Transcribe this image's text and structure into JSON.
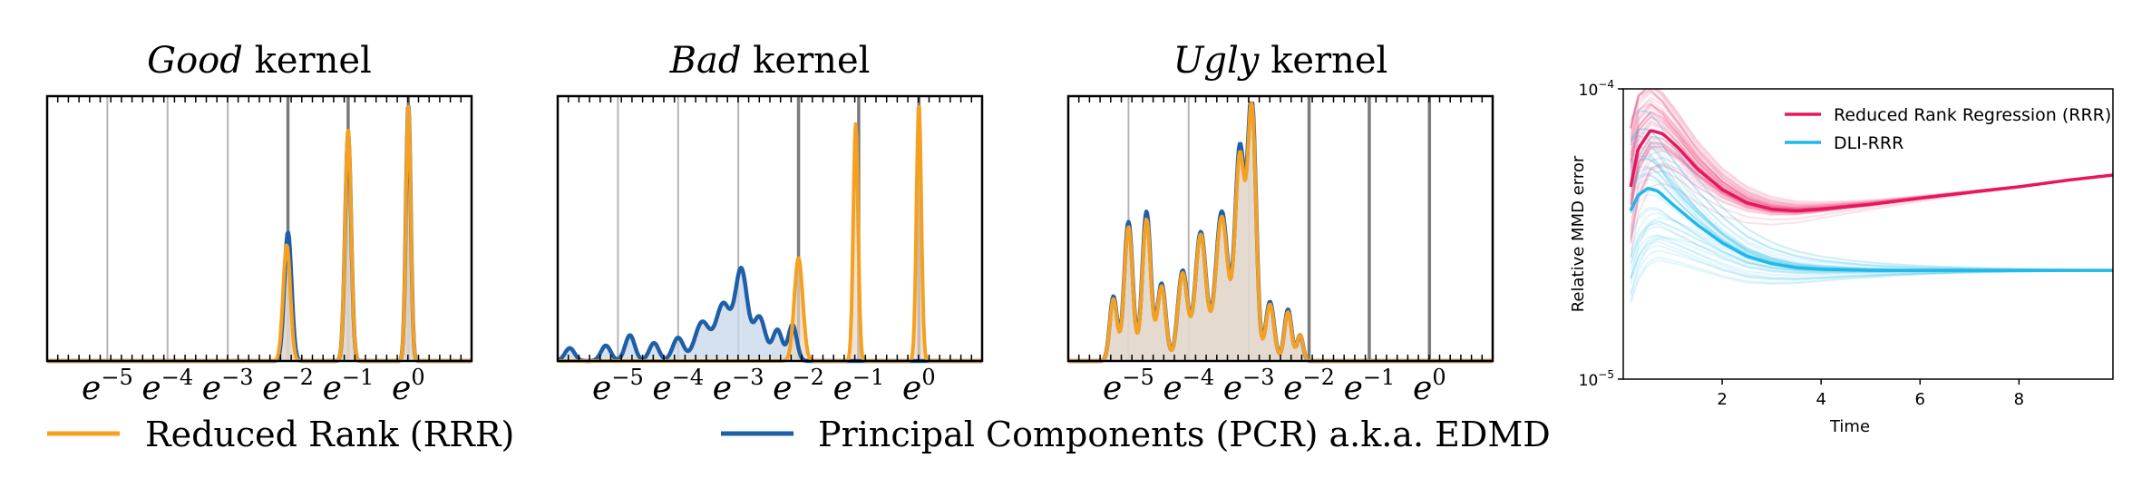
{
  "chart_data": [
    {
      "type": "area",
      "title": {
        "italic": "Good",
        "rest": " kernel"
      },
      "x_scale": "log-e",
      "x_tick_labels": [
        {
          "base": "e",
          "exp": "−5",
          "value": -5
        },
        {
          "base": "e",
          "exp": "−4",
          "value": -4
        },
        {
          "base": "e",
          "exp": "−3",
          "value": -3
        },
        {
          "base": "e",
          "exp": "−2",
          "value": -2
        },
        {
          "base": "e",
          "exp": "−1",
          "value": -1
        },
        {
          "base": "e",
          "exp": "0",
          "value": 0
        }
      ],
      "xlim": [
        -6,
        1.05
      ],
      "ylim": [
        0,
        1
      ],
      "vlines": [
        {
          "x": -5,
          "style": "light"
        },
        {
          "x": -4,
          "style": "light"
        },
        {
          "x": -3,
          "style": "light"
        },
        {
          "x": -2,
          "style": "dark"
        },
        {
          "x": -1,
          "style": "dark"
        },
        {
          "x": 0,
          "style": "dark"
        }
      ],
      "series": [
        {
          "name": "Principal Components (PCR) a.k.a. EDMD",
          "color": "#1f5fa8",
          "fill": "#c7d7e8",
          "peaks": [
            [
              -2.0,
              0.5,
              0.06
            ],
            [
              -1.0,
              0.88,
              0.05
            ],
            [
              0.0,
              1.0,
              0.04
            ]
          ]
        },
        {
          "name": "Reduced Rank (RRR)",
          "color": "#f5a020",
          "fill": "#e9d7c2",
          "peaks": [
            [
              -2.02,
              0.45,
              0.06
            ],
            [
              -1.0,
              0.9,
              0.05
            ],
            [
              0.0,
              1.0,
              0.04
            ]
          ]
        }
      ]
    },
    {
      "type": "area",
      "title": {
        "italic": "Bad",
        "rest": " kernel"
      },
      "x_scale": "log-e",
      "x_tick_labels": [
        {
          "base": "e",
          "exp": "−5",
          "value": -5
        },
        {
          "base": "e",
          "exp": "−4",
          "value": -4
        },
        {
          "base": "e",
          "exp": "−3",
          "value": -3
        },
        {
          "base": "e",
          "exp": "−2",
          "value": -2
        },
        {
          "base": "e",
          "exp": "−1",
          "value": -1
        },
        {
          "base": "e",
          "exp": "0",
          "value": 0
        }
      ],
      "xlim": [
        -6,
        1.05
      ],
      "ylim": [
        0,
        1
      ],
      "vlines": [
        {
          "x": -5,
          "style": "light"
        },
        {
          "x": -4,
          "style": "light"
        },
        {
          "x": -3,
          "style": "light"
        },
        {
          "x": -2,
          "style": "dark"
        },
        {
          "x": -1,
          "style": "dark"
        },
        {
          "x": 0,
          "style": "dark"
        }
      ],
      "series": [
        {
          "name": "Principal Components (PCR) a.k.a. EDMD",
          "color": "#1f5fa8",
          "fill": "#c7d7e8",
          "peaks": [
            [
              -5.8,
              0.05,
              0.08
            ],
            [
              -5.2,
              0.06,
              0.08
            ],
            [
              -4.8,
              0.1,
              0.08
            ],
            [
              -4.4,
              0.07,
              0.08
            ],
            [
              -4.0,
              0.09,
              0.09
            ],
            [
              -3.6,
              0.15,
              0.12
            ],
            [
              -3.25,
              0.22,
              0.12
            ],
            [
              -2.95,
              0.35,
              0.1
            ],
            [
              -2.65,
              0.17,
              0.1
            ],
            [
              -2.35,
              0.12,
              0.08
            ],
            [
              -2.1,
              0.14,
              0.07
            ]
          ]
        },
        {
          "name": "Reduced Rank (RRR)",
          "color": "#f5a020",
          "fill": "#e9d7c2",
          "peaks": [
            [
              -2.0,
              0.4,
              0.07
            ],
            [
              -1.05,
              0.92,
              0.04
            ],
            [
              0.0,
              1.0,
              0.04
            ]
          ]
        }
      ]
    },
    {
      "type": "area",
      "title": {
        "italic": "Ugly",
        "rest": " kernel"
      },
      "x_scale": "log-e",
      "x_tick_labels": [
        {
          "base": "e",
          "exp": "−5",
          "value": -5
        },
        {
          "base": "e",
          "exp": "−4",
          "value": -4
        },
        {
          "base": "e",
          "exp": "−3",
          "value": -3
        },
        {
          "base": "e",
          "exp": "−2",
          "value": -2
        },
        {
          "base": "e",
          "exp": "−1",
          "value": -1
        },
        {
          "base": "e",
          "exp": "0",
          "value": 0
        }
      ],
      "xlim": [
        -6,
        1.05
      ],
      "ylim": [
        0,
        1
      ],
      "vlines": [
        {
          "x": -5,
          "style": "light"
        },
        {
          "x": -4,
          "style": "light"
        },
        {
          "x": -3,
          "style": "light"
        },
        {
          "x": -2,
          "style": "dark"
        },
        {
          "x": -1,
          "style": "dark"
        },
        {
          "x": 0,
          "style": "dark"
        }
      ],
      "series": [
        {
          "name": "Principal Components (PCR) a.k.a. EDMD",
          "color": "#1f5fa8",
          "fill": "#c7d7e8",
          "peaks": [
            [
              -5.25,
              0.25,
              0.06
            ],
            [
              -5.0,
              0.54,
              0.07
            ],
            [
              -4.7,
              0.58,
              0.07
            ],
            [
              -4.45,
              0.3,
              0.07
            ],
            [
              -4.1,
              0.35,
              0.08
            ],
            [
              -3.8,
              0.5,
              0.09
            ],
            [
              -3.45,
              0.58,
              0.1
            ],
            [
              -3.15,
              0.82,
              0.08
            ],
            [
              -2.95,
              1.0,
              0.07
            ],
            [
              -2.65,
              0.23,
              0.07
            ],
            [
              -2.35,
              0.2,
              0.06
            ],
            [
              -2.15,
              0.1,
              0.05
            ]
          ]
        },
        {
          "name": "Reduced Rank (RRR)",
          "color": "#f5a020",
          "fill": "#e9d7c2",
          "peaks": [
            [
              -5.25,
              0.24,
              0.06
            ],
            [
              -5.0,
              0.52,
              0.07
            ],
            [
              -4.7,
              0.55,
              0.07
            ],
            [
              -4.45,
              0.29,
              0.07
            ],
            [
              -4.1,
              0.34,
              0.08
            ],
            [
              -3.8,
              0.49,
              0.09
            ],
            [
              -3.45,
              0.56,
              0.1
            ],
            [
              -3.15,
              0.79,
              0.08
            ],
            [
              -2.95,
              0.97,
              0.07
            ],
            [
              -2.65,
              0.22,
              0.07
            ],
            [
              -2.35,
              0.19,
              0.06
            ],
            [
              -2.15,
              0.1,
              0.05
            ]
          ]
        }
      ]
    },
    {
      "type": "line",
      "xlabel": "Time",
      "ylabel": "Relative MMD error",
      "y_scale": "log",
      "xlim": [
        0,
        9.9
      ],
      "ylim": [
        1e-05,
        0.0001
      ],
      "x_ticks": [
        2,
        4,
        6,
        8
      ],
      "y_ticks": [
        {
          "value": 1e-05,
          "base": "10",
          "exp": "−5"
        },
        {
          "value": 0.0001,
          "base": "10",
          "exp": "−4"
        }
      ],
      "legend_position": "top-right",
      "series": [
        {
          "name": "Reduced Rank Regression (RRR)",
          "color": "#e8175d",
          "points": [
            [
              0.15,
              4.6e-05
            ],
            [
              0.3,
              6.2e-05
            ],
            [
              0.55,
              7.2e-05
            ],
            [
              0.8,
              7e-05
            ],
            [
              1.1,
              6.3e-05
            ],
            [
              1.5,
              5.3e-05
            ],
            [
              2.0,
              4.5e-05
            ],
            [
              2.5,
              4.05e-05
            ],
            [
              3.0,
              3.85e-05
            ],
            [
              3.5,
              3.8e-05
            ],
            [
              4.0,
              3.85e-05
            ],
            [
              5.0,
              4e-05
            ],
            [
              6.0,
              4.2e-05
            ],
            [
              7.0,
              4.4e-05
            ],
            [
              8.0,
              4.6e-05
            ],
            [
              9.0,
              4.85e-05
            ],
            [
              9.9,
              5.05e-05
            ]
          ]
        },
        {
          "name": "DLI-RRR",
          "color": "#1fb8ea",
          "points": [
            [
              0.15,
              3.8e-05
            ],
            [
              0.3,
              4.3e-05
            ],
            [
              0.5,
              4.55e-05
            ],
            [
              0.7,
              4.45e-05
            ],
            [
              1.0,
              4e-05
            ],
            [
              1.5,
              3.4e-05
            ],
            [
              2.0,
              2.95e-05
            ],
            [
              2.5,
              2.65e-05
            ],
            [
              3.0,
              2.5e-05
            ],
            [
              3.5,
              2.42e-05
            ],
            [
              4.0,
              2.39e-05
            ],
            [
              5.0,
              2.37e-05
            ],
            [
              6.0,
              2.37e-05
            ],
            [
              8.0,
              2.37e-05
            ],
            [
              9.9,
              2.37e-05
            ]
          ]
        }
      ]
    }
  ],
  "legend": {
    "rrr_label": "Reduced Rank (RRR)",
    "pcr_label": "Principal Components (PCR) a.k.a. EDMD",
    "rrr_color": "#f5a020",
    "pcr_color": "#1f5fa8"
  }
}
